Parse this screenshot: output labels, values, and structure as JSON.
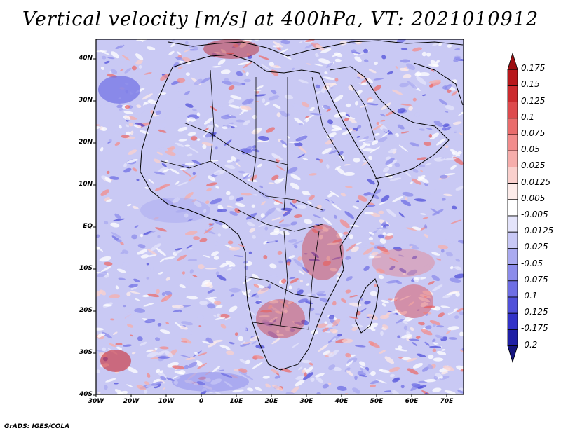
{
  "title": "Vertical velocity [m/s] at 400hPa, VT: 2021010912",
  "credit": "GrADS: IGES/COLA",
  "lat_labels": [
    "40N",
    "30N",
    "20N",
    "10N",
    "EQ",
    "10S",
    "20S",
    "30S",
    "40S"
  ],
  "lon_labels": [
    "30W",
    "20W",
    "10W",
    "0",
    "10E",
    "20E",
    "30E",
    "40E",
    "50E",
    "60E",
    "70E"
  ],
  "colorbar": {
    "labels": [
      "0.175",
      "0.15",
      "0.125",
      "0.1",
      "0.075",
      "0.05",
      "0.025",
      "0.0125",
      "0.005",
      "-0.005",
      "-0.0125",
      "-0.025",
      "-0.05",
      "-0.075",
      "-0.1",
      "-0.125",
      "-0.175",
      "-0.2"
    ],
    "colors": [
      "#9e0f12",
      "#b8171b",
      "#cc2a2e",
      "#de4a4d",
      "#ea6c6c",
      "#f28c8c",
      "#f6adab",
      "#fad0cd",
      "#fdecea",
      "#ffffff",
      "#e4e4fb",
      "#c8c8f6",
      "#aaaaf0",
      "#8c8ceb",
      "#6e6ee4",
      "#5050da",
      "#3232c8",
      "#1e1ea6",
      "#14147e"
    ]
  }
}
